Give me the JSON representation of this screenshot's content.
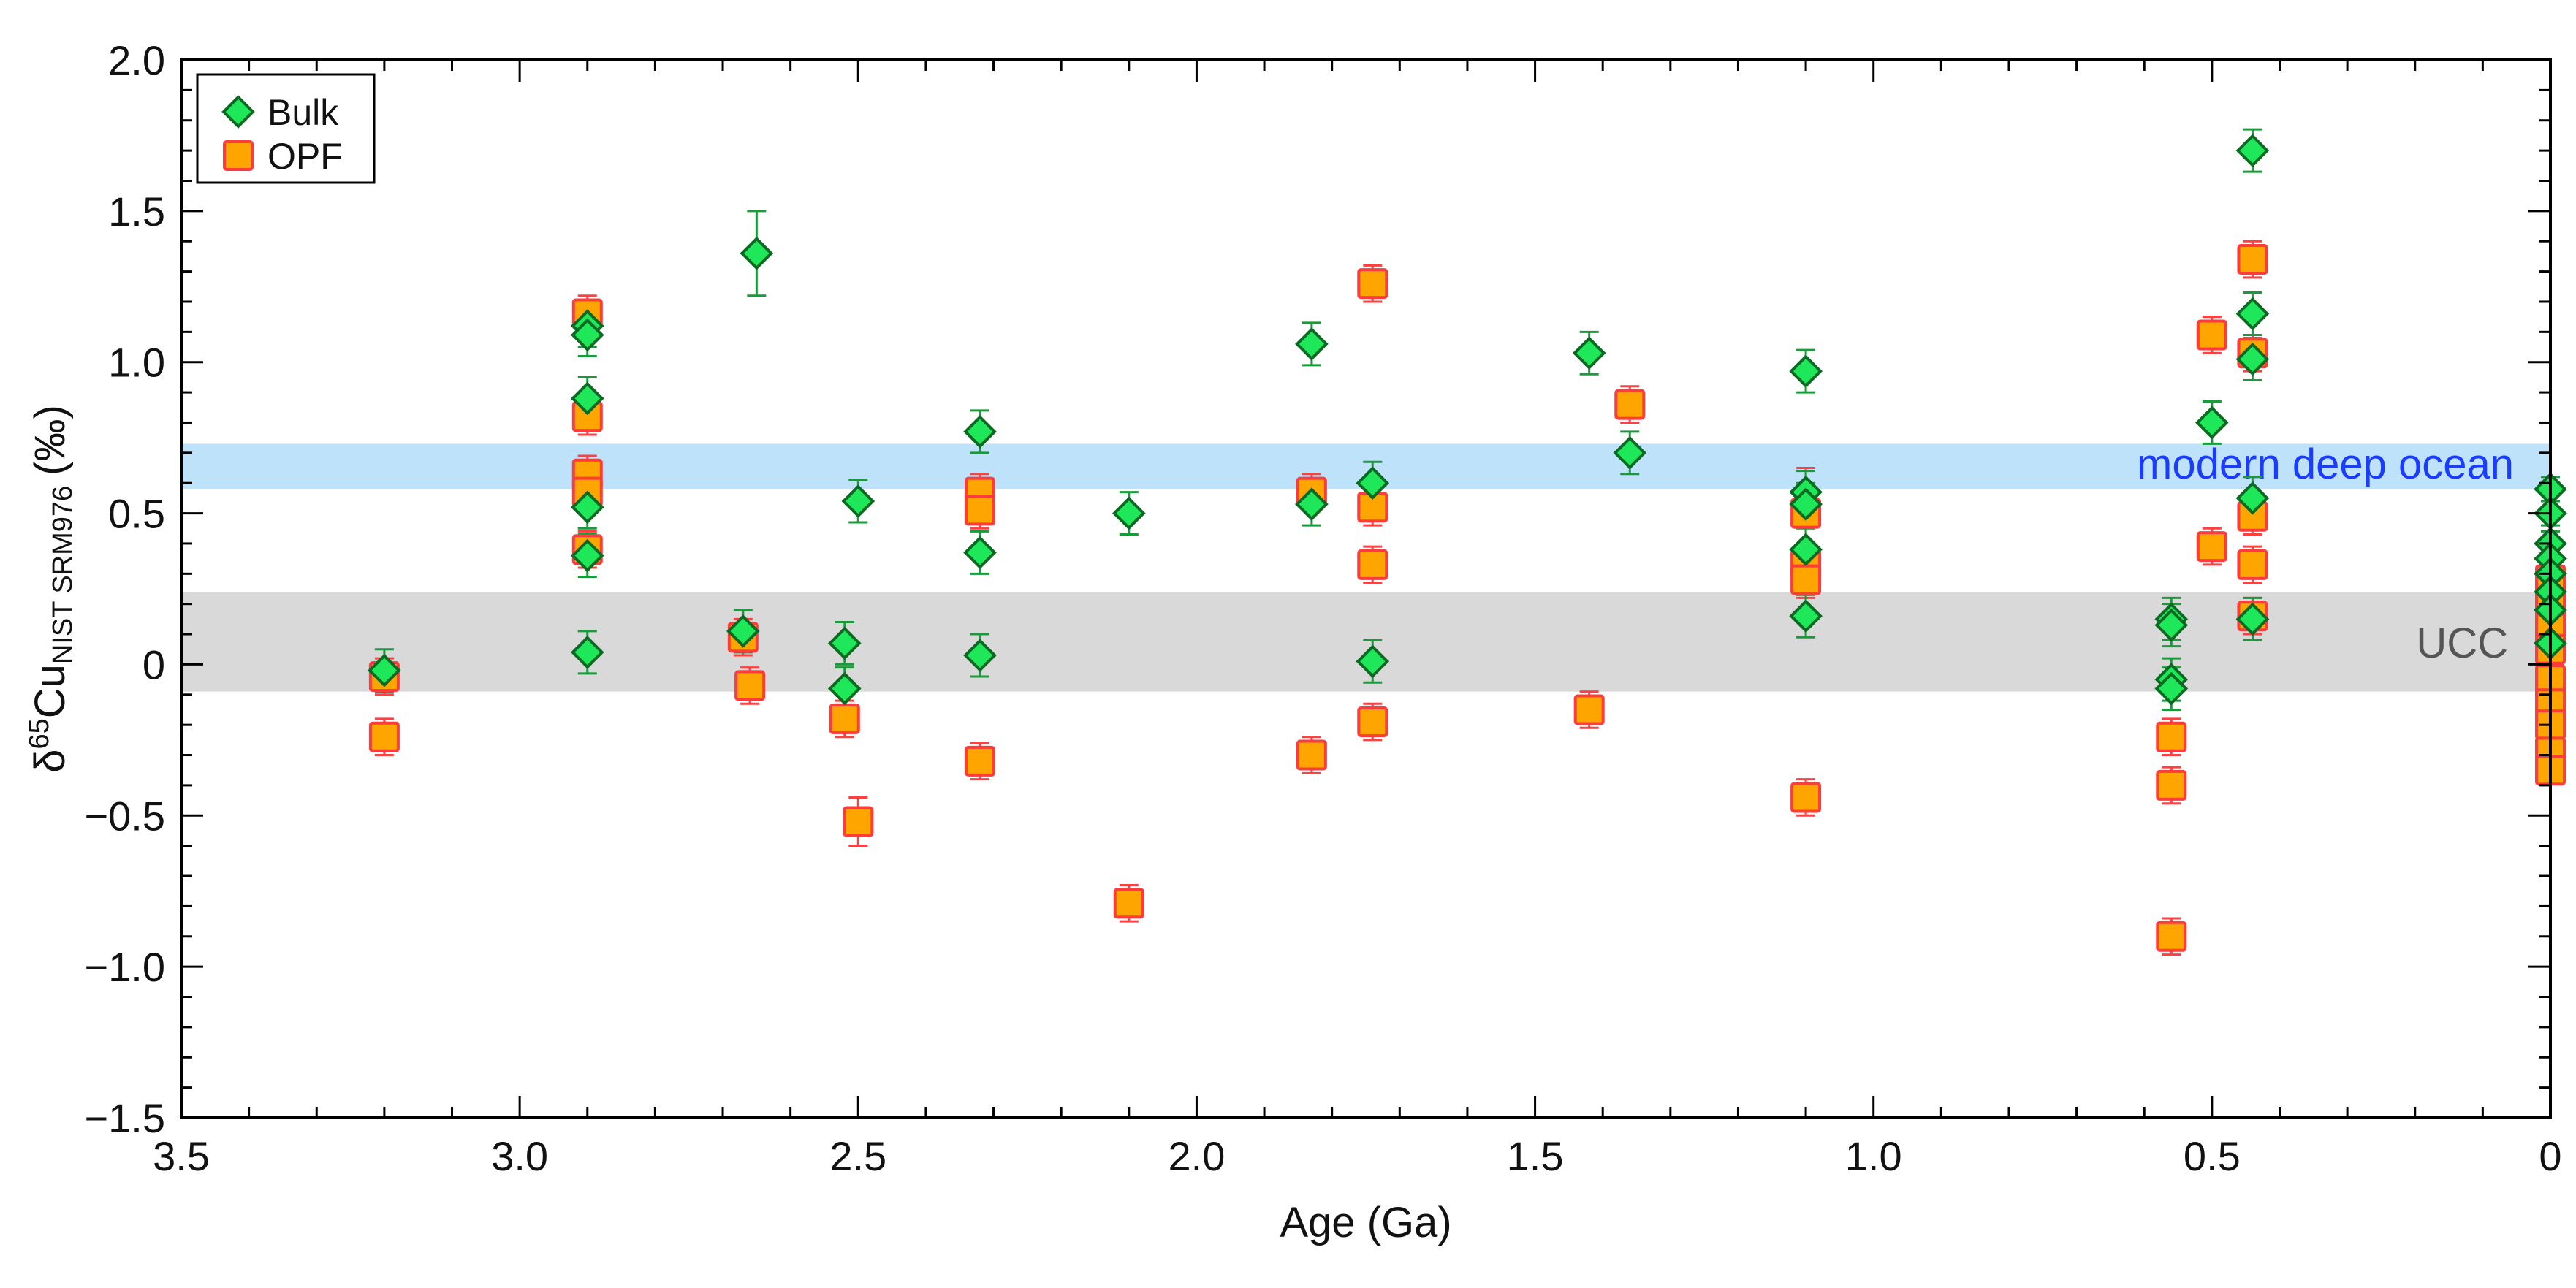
{
  "chart_data": {
    "type": "scatter",
    "title": "",
    "xlabel": "Age (Ga)",
    "ylabel": {
      "delta": "δ",
      "mass": "65",
      "element": "Cu",
      "ref": "NIST SRM976",
      "unit": "(‰)"
    },
    "xlim": [
      3.5,
      0
    ],
    "ylim": [
      -1.5,
      2.0
    ],
    "x_ticks": [
      3.5,
      3.0,
      2.5,
      2.0,
      1.5,
      1.0,
      0.5,
      0
    ],
    "x_tick_labels": [
      "3.5",
      "3.0",
      "2.5",
      "2.0",
      "1.5",
      "1.0",
      "0.5",
      "0"
    ],
    "y_ticks": [
      2.0,
      1.5,
      1.0,
      0.5,
      0,
      -0.5,
      -1.0,
      -1.5
    ],
    "y_tick_labels": [
      "2.0",
      "1.5",
      "1.0",
      "0.5",
      "0",
      "−0.5",
      "−1.0",
      "−1.5"
    ],
    "grid": false,
    "legend": {
      "position": "top-left",
      "entries": [
        "Bulk",
        "OPF"
      ]
    },
    "bands": [
      {
        "label": "modern deep ocean",
        "y_range": [
          0.58,
          0.73
        ],
        "color": "#bfe2fb",
        "label_color": "#1a3cff"
      },
      {
        "label": "UCC",
        "y_range": [
          -0.09,
          0.24
        ],
        "color": "#d9d9d9",
        "label_color": "#555555"
      }
    ],
    "series": [
      {
        "name": "Bulk",
        "marker": "diamond",
        "fill": "#1ee85a",
        "stroke": "#0a6a22",
        "error_color": "#1a9a3a",
        "points": [
          {
            "x": 3.2,
            "y": -0.02,
            "err": 0.07
          },
          {
            "x": 2.9,
            "y": 1.12,
            "err": 0.07
          },
          {
            "x": 2.9,
            "y": 1.09,
            "err": 0.07
          },
          {
            "x": 2.9,
            "y": 0.88,
            "err": 0.07
          },
          {
            "x": 2.9,
            "y": 0.52,
            "err": 0.07
          },
          {
            "x": 2.9,
            "y": 0.36,
            "err": 0.07
          },
          {
            "x": 2.9,
            "y": 0.04,
            "err": 0.07
          },
          {
            "x": 2.67,
            "y": 0.11,
            "err": 0.07
          },
          {
            "x": 2.65,
            "y": 1.36,
            "err": 0.14
          },
          {
            "x": 2.52,
            "y": 0.07,
            "err": 0.07
          },
          {
            "x": 2.52,
            "y": -0.08,
            "err": 0.07
          },
          {
            "x": 2.5,
            "y": 0.54,
            "err": 0.07
          },
          {
            "x": 2.32,
            "y": 0.77,
            "err": 0.07
          },
          {
            "x": 2.32,
            "y": 0.37,
            "err": 0.07
          },
          {
            "x": 2.32,
            "y": 0.03,
            "err": 0.07
          },
          {
            "x": 2.1,
            "y": 0.5,
            "err": 0.07
          },
          {
            "x": 1.83,
            "y": 1.06,
            "err": 0.07
          },
          {
            "x": 1.83,
            "y": 0.53,
            "err": 0.07
          },
          {
            "x": 1.74,
            "y": 0.6,
            "err": 0.07
          },
          {
            "x": 1.74,
            "y": 0.01,
            "err": 0.07
          },
          {
            "x": 1.42,
            "y": 1.03,
            "err": 0.07
          },
          {
            "x": 1.36,
            "y": 0.7,
            "err": 0.07
          },
          {
            "x": 1.1,
            "y": 0.97,
            "err": 0.07
          },
          {
            "x": 1.1,
            "y": 0.57,
            "err": 0.07
          },
          {
            "x": 1.1,
            "y": 0.53,
            "err": 0.07
          },
          {
            "x": 1.1,
            "y": 0.38,
            "err": 0.07
          },
          {
            "x": 1.1,
            "y": 0.16,
            "err": 0.07
          },
          {
            "x": 0.56,
            "y": 0.15,
            "err": 0.07
          },
          {
            "x": 0.56,
            "y": 0.13,
            "err": 0.07
          },
          {
            "x": 0.56,
            "y": -0.05,
            "err": 0.07
          },
          {
            "x": 0.56,
            "y": -0.08,
            "err": 0.07
          },
          {
            "x": 0.5,
            "y": 0.8,
            "err": 0.07
          },
          {
            "x": 0.44,
            "y": 1.7,
            "err": 0.07
          },
          {
            "x": 0.44,
            "y": 1.16,
            "err": 0.07
          },
          {
            "x": 0.44,
            "y": 1.01,
            "err": 0.07
          },
          {
            "x": 0.44,
            "y": 0.55,
            "err": 0.07
          },
          {
            "x": 0.44,
            "y": 0.15,
            "err": 0.07
          },
          {
            "x": 0.0,
            "y": 0.58,
            "err": 0.04
          },
          {
            "x": 0.0,
            "y": 0.5,
            "err": 0.04
          },
          {
            "x": 0.0,
            "y": 0.4,
            "err": 0.04
          },
          {
            "x": 0.0,
            "y": 0.35,
            "err": 0.04
          },
          {
            "x": 0.0,
            "y": 0.3,
            "err": 0.04
          },
          {
            "x": 0.0,
            "y": 0.24,
            "err": 0.04
          },
          {
            "x": 0.0,
            "y": 0.18,
            "err": 0.04
          },
          {
            "x": 0.0,
            "y": 0.07,
            "err": 0.04
          }
        ]
      },
      {
        "name": "OPF",
        "marker": "square",
        "fill": "#ffa500",
        "stroke": "#ff3b3b",
        "error_color": "#ff4040",
        "points": [
          {
            "x": 3.2,
            "y": -0.04,
            "err": 0.06
          },
          {
            "x": 3.2,
            "y": -0.24,
            "err": 0.06
          },
          {
            "x": 2.9,
            "y": 1.16,
            "err": 0.06
          },
          {
            "x": 2.9,
            "y": 0.82,
            "err": 0.06
          },
          {
            "x": 2.9,
            "y": 0.63,
            "err": 0.06
          },
          {
            "x": 2.9,
            "y": 0.57,
            "err": 0.06
          },
          {
            "x": 2.9,
            "y": 0.38,
            "err": 0.06
          },
          {
            "x": 2.67,
            "y": 0.09,
            "err": 0.06
          },
          {
            "x": 2.66,
            "y": -0.07,
            "err": 0.06
          },
          {
            "x": 2.52,
            "y": -0.18,
            "err": 0.06
          },
          {
            "x": 2.5,
            "y": -0.52,
            "err": 0.08
          },
          {
            "x": 2.32,
            "y": 0.57,
            "err": 0.06
          },
          {
            "x": 2.32,
            "y": 0.51,
            "err": 0.06
          },
          {
            "x": 2.32,
            "y": -0.32,
            "err": 0.06
          },
          {
            "x": 2.1,
            "y": -0.79,
            "err": 0.06
          },
          {
            "x": 1.83,
            "y": 0.57,
            "err": 0.06
          },
          {
            "x": 1.83,
            "y": -0.3,
            "err": 0.06
          },
          {
            "x": 1.74,
            "y": 1.26,
            "err": 0.06
          },
          {
            "x": 1.74,
            "y": 0.52,
            "err": 0.06
          },
          {
            "x": 1.74,
            "y": 0.33,
            "err": 0.06
          },
          {
            "x": 1.74,
            "y": -0.19,
            "err": 0.06
          },
          {
            "x": 1.42,
            "y": -0.15,
            "err": 0.06
          },
          {
            "x": 1.36,
            "y": 0.86,
            "err": 0.06
          },
          {
            "x": 1.1,
            "y": 0.5,
            "err": 0.15
          },
          {
            "x": 1.1,
            "y": 0.33,
            "err": 0.06
          },
          {
            "x": 1.1,
            "y": 0.28,
            "err": 0.06
          },
          {
            "x": 1.1,
            "y": -0.44,
            "err": 0.06
          },
          {
            "x": 0.56,
            "y": -0.24,
            "err": 0.06
          },
          {
            "x": 0.56,
            "y": -0.4,
            "err": 0.06
          },
          {
            "x": 0.56,
            "y": -0.9,
            "err": 0.06
          },
          {
            "x": 0.5,
            "y": 1.09,
            "err": 0.06
          },
          {
            "x": 0.5,
            "y": 0.39,
            "err": 0.06
          },
          {
            "x": 0.44,
            "y": 1.34,
            "err": 0.06
          },
          {
            "x": 0.44,
            "y": 1.03,
            "err": 0.06
          },
          {
            "x": 0.44,
            "y": 0.49,
            "err": 0.06
          },
          {
            "x": 0.44,
            "y": 0.33,
            "err": 0.06
          },
          {
            "x": 0.44,
            "y": 0.16,
            "err": 0.06
          },
          {
            "x": 0.0,
            "y": 0.28,
            "err": 0.04
          },
          {
            "x": 0.0,
            "y": 0.2,
            "err": 0.04
          },
          {
            "x": 0.0,
            "y": 0.12,
            "err": 0.04
          },
          {
            "x": 0.0,
            "y": 0.05,
            "err": 0.04
          },
          {
            "x": 0.0,
            "y": -0.05,
            "err": 0.04
          },
          {
            "x": 0.0,
            "y": -0.13,
            "err": 0.04
          },
          {
            "x": 0.0,
            "y": -0.2,
            "err": 0.04
          },
          {
            "x": 0.0,
            "y": -0.29,
            "err": 0.04
          },
          {
            "x": 0.0,
            "y": -0.35,
            "err": 0.04
          }
        ]
      }
    ]
  }
}
